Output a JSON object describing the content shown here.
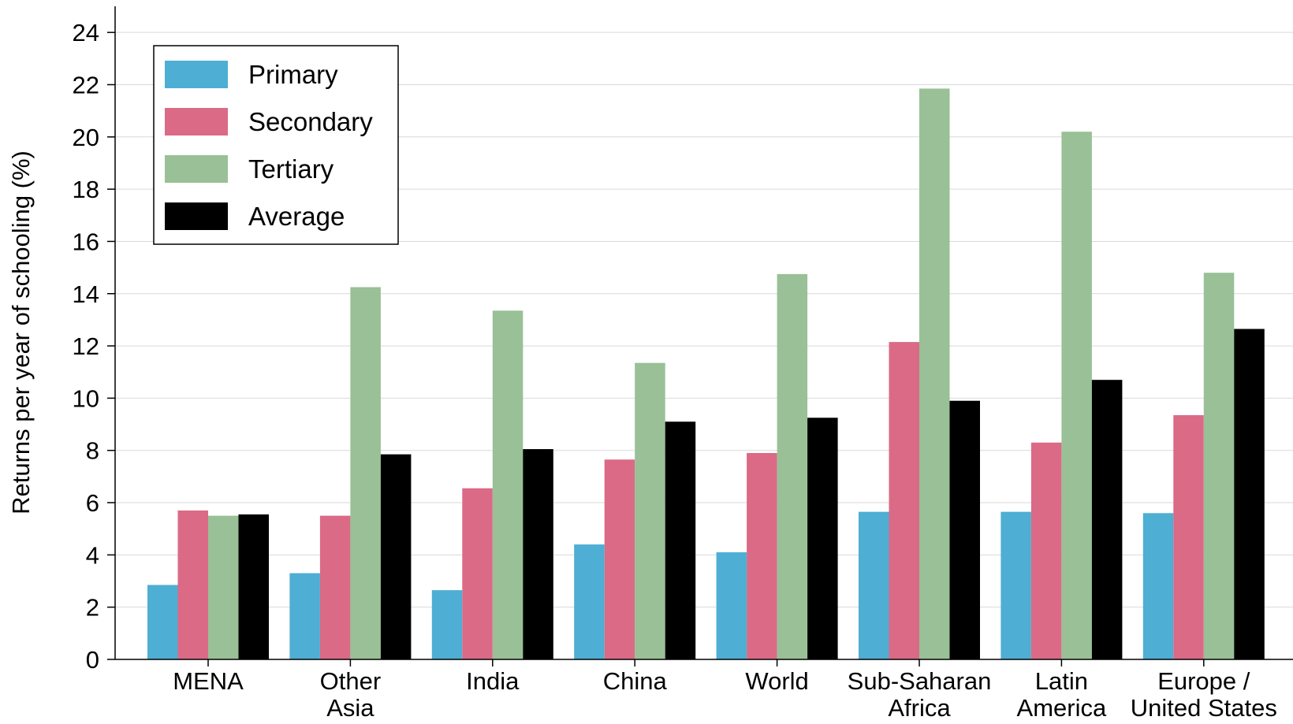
{
  "chart_data": {
    "type": "bar",
    "ylabel": "Returns per year of schooling (%)",
    "xlabel": "",
    "ylim": [
      0,
      25
    ],
    "yticks": [
      0,
      2,
      4,
      6,
      8,
      10,
      12,
      14,
      16,
      18,
      20,
      22,
      24
    ],
    "grid": true,
    "legend_position": "top-left",
    "categories": [
      [
        "MENA"
      ],
      [
        "Other",
        "Asia"
      ],
      [
        "India"
      ],
      [
        "China"
      ],
      [
        "World"
      ],
      [
        "Sub-Saharan",
        "Africa"
      ],
      [
        "Latin",
        "America"
      ],
      [
        "Europe /",
        "United States"
      ]
    ],
    "series": [
      {
        "name": "Primary",
        "color": "#4eaed3",
        "values": [
          2.85,
          3.3,
          2.65,
          4.4,
          4.1,
          5.65,
          5.65,
          5.6
        ]
      },
      {
        "name": "Secondary",
        "color": "#db6a86",
        "values": [
          5.7,
          5.5,
          6.55,
          7.65,
          7.9,
          12.15,
          8.3,
          9.35
        ]
      },
      {
        "name": "Tertiary",
        "color": "#99c096",
        "values": [
          5.5,
          14.25,
          13.35,
          11.35,
          14.75,
          21.85,
          20.2,
          14.8
        ]
      },
      {
        "name": "Average",
        "color": "#000000",
        "values": [
          5.55,
          7.85,
          8.05,
          9.1,
          9.25,
          9.9,
          10.7,
          12.65
        ]
      }
    ]
  }
}
